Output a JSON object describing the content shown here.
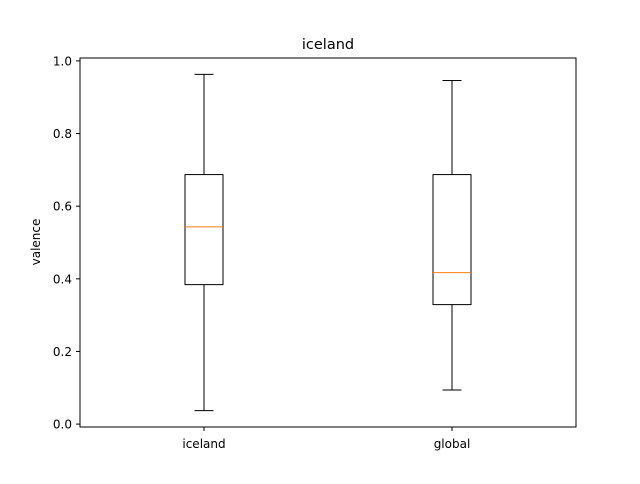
{
  "chart_data": {
    "type": "box",
    "title": "iceland",
    "xlabel": "",
    "ylabel": "valence",
    "categories": [
      "iceland",
      "global"
    ],
    "series": [
      {
        "category": "iceland",
        "whisker_low": 0.037,
        "q1": 0.384,
        "median": 0.543,
        "q3": 0.687,
        "whisker_high": 0.963
      },
      {
        "category": "global",
        "whisker_low": 0.094,
        "q1": 0.329,
        "median": 0.417,
        "q3": 0.687,
        "whisker_high": 0.946
      }
    ],
    "ylim": [
      -0.008,
      1.008
    ],
    "yticks": [
      "0.0",
      "0.2",
      "0.4",
      "0.6",
      "0.8",
      "1.0"
    ],
    "grid": false,
    "colors": {
      "box": "#000000",
      "median": "#ff7f0e",
      "background": "#ffffff"
    }
  }
}
